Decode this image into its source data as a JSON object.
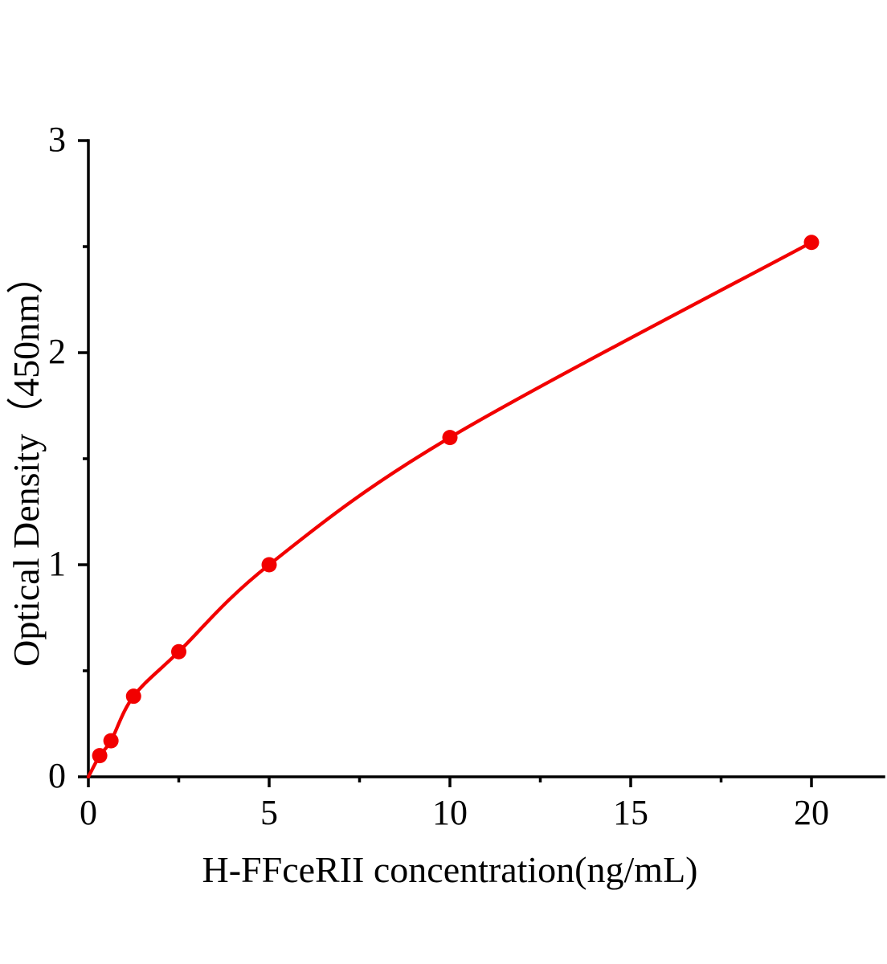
{
  "chart_data": {
    "type": "scatter",
    "title": "",
    "xlabel": "H-FFceRII concentration(ng/mL)",
    "ylabel": "Optical Density（450nm）",
    "x": [
      0.313,
      0.625,
      1.25,
      2.5,
      5,
      10,
      20
    ],
    "y": [
      0.1,
      0.17,
      0.38,
      0.59,
      1.0,
      1.6,
      2.52
    ],
    "curve_origin": {
      "x": 0,
      "y": 0
    },
    "xlim": [
      0,
      22
    ],
    "ylim": [
      0,
      3
    ],
    "x_major_ticks": [
      0,
      5,
      10,
      15,
      20
    ],
    "x_minor_ticks": [
      2.5,
      7.5,
      12.5,
      17.5
    ],
    "y_major_ticks": [
      0,
      1,
      2,
      3
    ],
    "y_minor_ticks": [
      0.5,
      1.5,
      2.5
    ],
    "grid": false,
    "legend": "none",
    "marker": "filled-circle",
    "colors": {
      "curve": "#f20000",
      "marker": "#f20000",
      "axis": "#000000",
      "text": "#000000",
      "background": "#ffffff"
    }
  }
}
